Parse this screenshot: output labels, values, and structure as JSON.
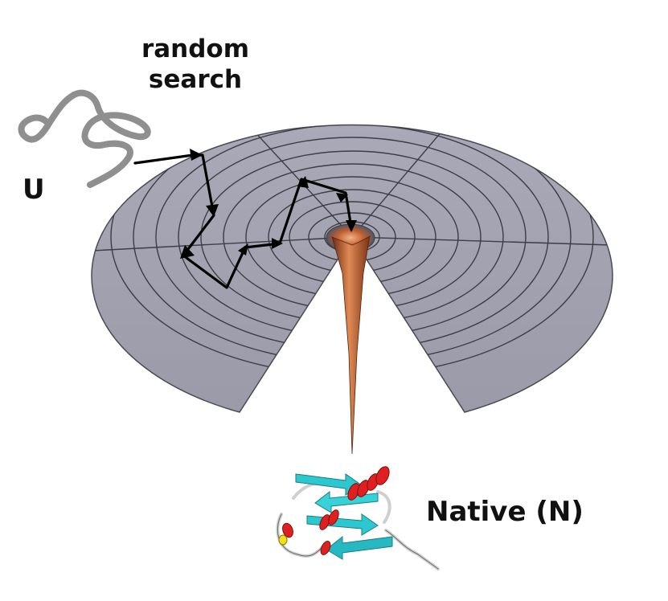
{
  "labels": {
    "random_search_line1": "random",
    "random_search_line2": "search",
    "unfolded": "U",
    "native": "Native (N)"
  },
  "colors": {
    "funnel_surface": "#a2a2b1",
    "grid_lines": "#3d3d46",
    "funnel_tip": "#b8572e",
    "path_arrows": "#000000",
    "unfolded_chain": "#8f8f8f",
    "helix": "#e02020",
    "strand": "#2cc7cf",
    "coil": "#cfcfcf"
  }
}
